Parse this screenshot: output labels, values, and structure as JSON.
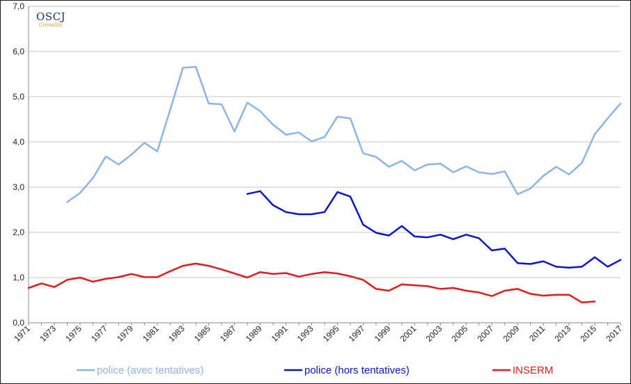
{
  "logo": {
    "text": "OSCJ",
    "subtext": "Crimalité"
  },
  "chart_data": {
    "type": "line",
    "title": "",
    "xlabel": "",
    "ylabel": "",
    "ylim": [
      0,
      7
    ],
    "xlim": [
      1971,
      2017
    ],
    "y_ticks": [
      "0,0",
      "1,0",
      "2,0",
      "3,0",
      "4,0",
      "5,0",
      "6,0",
      "7,0"
    ],
    "x_ticks": [
      "1971",
      "1973",
      "1975",
      "1977",
      "1979",
      "1981",
      "1983",
      "1985",
      "1987",
      "1989",
      "1991",
      "1993",
      "1995",
      "1997",
      "1999",
      "2001",
      "2003",
      "2005",
      "2007",
      "2009",
      "2011",
      "2013",
      "2015",
      "2017"
    ],
    "grid": "horizontal",
    "legend_position": "bottom",
    "series": [
      {
        "name": "police (avec tentatives)",
        "color": "#8db4e2",
        "x": [
          1974,
          1975,
          1976,
          1977,
          1978,
          1979,
          1980,
          1981,
          1982,
          1983,
          1984,
          1985,
          1986,
          1987,
          1988,
          1989,
          1990,
          1991,
          1992,
          1993,
          1994,
          1995,
          1996,
          1997,
          1998,
          1999,
          2000,
          2001,
          2002,
          2003,
          2004,
          2005,
          2006,
          2007,
          2008,
          2009,
          2010,
          2011,
          2012,
          2013,
          2014,
          2015,
          2016,
          2017
        ],
        "values": [
          2.67,
          2.87,
          3.2,
          3.68,
          3.5,
          3.72,
          3.98,
          3.79,
          4.71,
          5.64,
          5.66,
          4.85,
          4.83,
          4.23,
          4.87,
          4.68,
          4.38,
          4.16,
          4.21,
          4.01,
          4.11,
          4.56,
          4.52,
          3.75,
          3.67,
          3.45,
          3.58,
          3.37,
          3.5,
          3.52,
          3.33,
          3.46,
          3.33,
          3.29,
          3.35,
          2.84,
          2.97,
          3.25,
          3.45,
          3.28,
          3.54,
          4.17,
          4.52,
          4.85
        ]
      },
      {
        "name": "police (hors tentatives)",
        "color": "#0a14c8",
        "x": [
          1988,
          1989,
          1990,
          1991,
          1992,
          1993,
          1994,
          1995,
          1996,
          1997,
          1998,
          1999,
          2000,
          2001,
          2002,
          2003,
          2004,
          2005,
          2006,
          2007,
          2008,
          2009,
          2010,
          2011,
          2012,
          2013,
          2014,
          2015,
          2016,
          2017
        ],
        "values": [
          2.85,
          2.91,
          2.6,
          2.45,
          2.4,
          2.4,
          2.45,
          2.89,
          2.79,
          2.17,
          1.99,
          1.93,
          2.14,
          1.91,
          1.89,
          1.95,
          1.85,
          1.95,
          1.87,
          1.6,
          1.64,
          1.32,
          1.3,
          1.36,
          1.24,
          1.22,
          1.24,
          1.45,
          1.24,
          1.39
        ]
      },
      {
        "name": "INSERM",
        "color": "#e01b1b",
        "x": [
          1971,
          1972,
          1973,
          1974,
          1975,
          1976,
          1977,
          1978,
          1979,
          1980,
          1981,
          1982,
          1983,
          1984,
          1985,
          1986,
          1987,
          1988,
          1989,
          1990,
          1991,
          1992,
          1993,
          1994,
          1995,
          1996,
          1997,
          1998,
          1999,
          2000,
          2001,
          2002,
          2003,
          2004,
          2005,
          2006,
          2007,
          2008,
          2009,
          2010,
          2011,
          2012,
          2013,
          2014,
          2015
        ],
        "values": [
          0.77,
          0.87,
          0.79,
          0.95,
          1.0,
          0.91,
          0.97,
          1.01,
          1.08,
          1.01,
          1.01,
          1.14,
          1.26,
          1.31,
          1.26,
          1.18,
          1.09,
          1.0,
          1.12,
          1.08,
          1.1,
          1.02,
          1.08,
          1.12,
          1.09,
          1.03,
          0.95,
          0.75,
          0.71,
          0.85,
          0.83,
          0.81,
          0.75,
          0.77,
          0.71,
          0.67,
          0.59,
          0.71,
          0.75,
          0.64,
          0.6,
          0.62,
          0.62,
          0.45,
          0.47
        ]
      }
    ]
  }
}
